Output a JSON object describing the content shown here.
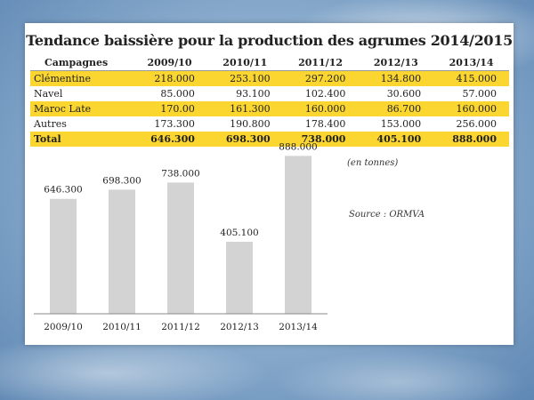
{
  "title": "Tendance baissière pour la production des agrumes 2014/2015",
  "table": {
    "headers": [
      "Campagnes",
      "2009/10",
      "2010/11",
      "2011/12",
      "2012/13",
      "2013/14"
    ],
    "rows": [
      {
        "label": "Clémentine",
        "values": [
          "218.000",
          "253.100",
          "297.200",
          "134.800",
          "415.000"
        ],
        "highlight": true
      },
      {
        "label": "Navel",
        "values": [
          "85.000",
          "93.100",
          "102.400",
          "30.600",
          "57.000"
        ],
        "highlight": false
      },
      {
        "label": "Maroc Late",
        "values": [
          "170.00",
          "161.300",
          "160.000",
          "86.700",
          "160.000"
        ],
        "highlight": true
      },
      {
        "label": "Autres",
        "values": [
          "173.300",
          "190.800",
          "178.400",
          "153.000",
          "256.000"
        ],
        "highlight": false
      }
    ],
    "total": {
      "label": "Total",
      "values": [
        "646.300",
        "698.300",
        "738.000",
        "405.100",
        "888.000"
      ]
    }
  },
  "unit_note": "(en tonnes)",
  "source": "Source : ORMVA",
  "colors": {
    "highlight": "#fbd631",
    "bar": "#d3d3d3",
    "axis": "#888888"
  },
  "chart_data": {
    "type": "bar",
    "categories": [
      "2009/10",
      "2010/11",
      "2011/12",
      "2012/13",
      "2013/14"
    ],
    "values": [
      646.3,
      698.3,
      738.0,
      405.1,
      888.0
    ],
    "value_labels": [
      "646.300",
      "698.300",
      "738.000",
      "405.100",
      "888.000"
    ],
    "title": "",
    "xlabel": "",
    "ylabel": "",
    "ylim": [
      0,
      1000
    ],
    "grid": false,
    "legend": "none"
  }
}
